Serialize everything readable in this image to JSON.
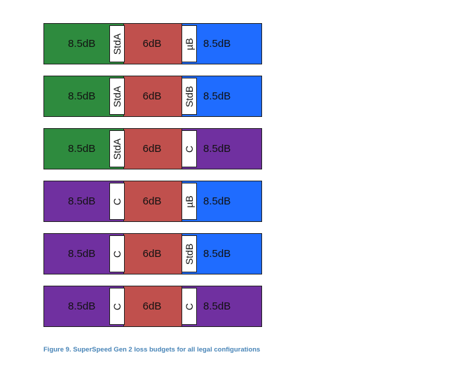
{
  "colors": {
    "host_std_a": "#2e8b3e",
    "device_std_b_ub": "#1f6cff",
    "type_c": "#7030a0",
    "cable": "#c0504d"
  },
  "configurations": [
    {
      "left": {
        "value": "8.5dB",
        "connector": "StdA",
        "color": "#2e8b3e"
      },
      "cable": {
        "value": "6dB"
      },
      "right": {
        "value": "8.5dB",
        "connector": "µB",
        "color": "#1f6cff"
      }
    },
    {
      "left": {
        "value": "8.5dB",
        "connector": "StdA",
        "color": "#2e8b3e"
      },
      "cable": {
        "value": "6dB"
      },
      "right": {
        "value": "8.5dB",
        "connector": "StdB",
        "color": "#1f6cff"
      }
    },
    {
      "left": {
        "value": "8.5dB",
        "connector": "StdA",
        "color": "#2e8b3e"
      },
      "cable": {
        "value": "6dB"
      },
      "right": {
        "value": "8.5dB",
        "connector": "C",
        "color": "#7030a0"
      }
    },
    {
      "left": {
        "value": "8.5dB",
        "connector": "C",
        "color": "#7030a0"
      },
      "cable": {
        "value": "6dB"
      },
      "right": {
        "value": "8.5dB",
        "connector": "µB",
        "color": "#1f6cff"
      }
    },
    {
      "left": {
        "value": "8.5dB",
        "connector": "C",
        "color": "#7030a0"
      },
      "cable": {
        "value": "6dB"
      },
      "right": {
        "value": "8.5dB",
        "connector": "StdB",
        "color": "#1f6cff"
      }
    },
    {
      "left": {
        "value": "8.5dB",
        "connector": "C",
        "color": "#7030a0"
      },
      "cable": {
        "value": "6dB"
      },
      "right": {
        "value": "8.5dB",
        "connector": "C",
        "color": "#7030a0"
      }
    }
  ],
  "caption": "Figure 9. SuperSpeed Gen 2 loss  budgets for all legal configurations"
}
